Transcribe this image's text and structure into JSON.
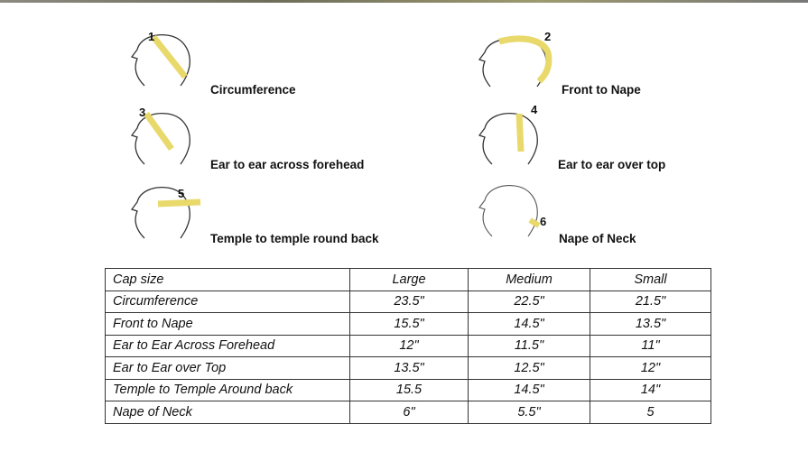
{
  "measurements": [
    {
      "number": "1",
      "label": "Circumference"
    },
    {
      "number": "2",
      "label": "Front to Nape"
    },
    {
      "number": "3",
      "label": "Ear to ear across forehead"
    },
    {
      "number": "4",
      "label": "Ear to ear over top"
    },
    {
      "number": "5",
      "label": "Temple to temple round back"
    },
    {
      "number": "6",
      "label": "Nape of Neck"
    }
  ],
  "table": {
    "headers": [
      "Cap size",
      "Large",
      "Medium",
      "Small"
    ],
    "rows": [
      [
        "Circumference",
        "23.5\"",
        "22.5\"",
        "21.5\""
      ],
      [
        "Front to Nape",
        "15.5\"",
        "14.5\"",
        "13.5\""
      ],
      [
        "Ear to Ear Across Forehead",
        "12\"",
        "11.5\"",
        "11\""
      ],
      [
        "Ear to Ear over Top",
        "13.5\"",
        "12.5\"",
        "12\""
      ],
      [
        "Temple to Temple Around back",
        "15.5",
        "14.5\"",
        "14\""
      ],
      [
        "Nape of Neck",
        "6\"",
        "5.5\"",
        "5"
      ]
    ]
  },
  "colors": {
    "tape": "#e8d96a",
    "line": "#333333"
  }
}
